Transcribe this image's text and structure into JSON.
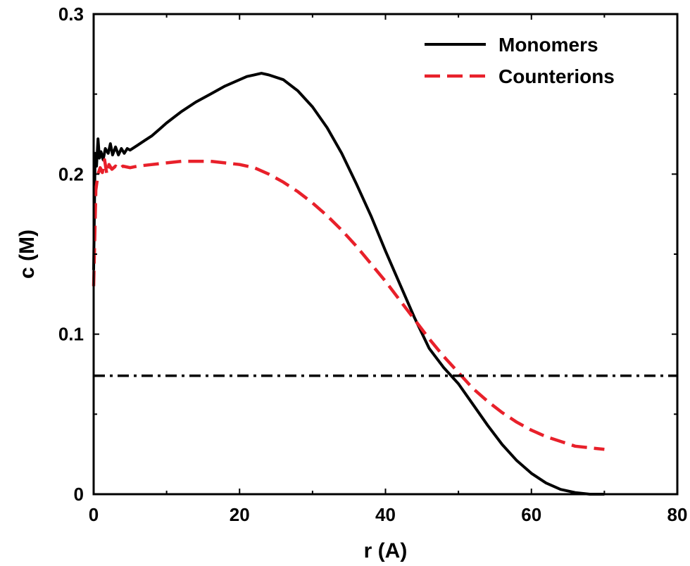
{
  "chart_data": {
    "type": "line",
    "title": "",
    "xlabel": "r (A)",
    "ylabel": "c (M)",
    "xlim": [
      0,
      80
    ],
    "ylim": [
      0,
      0.3
    ],
    "x_ticks": [
      "0",
      "20",
      "40",
      "60",
      "80"
    ],
    "y_ticks": [
      "0",
      "0.1",
      "0.2",
      "0.3"
    ],
    "grid": false,
    "legend_position": "top-right",
    "series": [
      {
        "name": "Monomers",
        "color": "#000000",
        "style": "solid",
        "x": [
          0,
          0.2,
          0.4,
          0.6,
          0.8,
          1,
          1.3,
          1.6,
          2,
          2.3,
          2.6,
          3,
          3.4,
          3.8,
          4.2,
          4.6,
          5,
          6,
          7,
          8,
          9,
          10,
          12,
          14,
          16,
          18,
          20,
          21,
          22,
          23,
          24,
          26,
          28,
          30,
          32,
          34,
          36,
          38,
          40,
          42,
          44,
          46,
          48,
          50,
          52,
          54,
          56,
          58,
          60,
          62,
          64,
          66,
          68,
          70
        ],
        "y": [
          0.14,
          0.213,
          0.205,
          0.222,
          0.21,
          0.214,
          0.209,
          0.216,
          0.213,
          0.219,
          0.212,
          0.217,
          0.212,
          0.216,
          0.213,
          0.216,
          0.215,
          0.218,
          0.221,
          0.224,
          0.228,
          0.232,
          0.239,
          0.245,
          0.25,
          0.255,
          0.259,
          0.261,
          0.262,
          0.263,
          0.262,
          0.259,
          0.252,
          0.242,
          0.229,
          0.213,
          0.194,
          0.174,
          0.152,
          0.131,
          0.11,
          0.091,
          0.079,
          0.069,
          0.056,
          0.043,
          0.031,
          0.021,
          0.013,
          0.007,
          0.003,
          0.001,
          0.0,
          0.0
        ]
      },
      {
        "name": "Counterions",
        "color": "#e8202a",
        "style": "dashed",
        "x": [
          0,
          0.3,
          0.6,
          0.9,
          1.2,
          1.5,
          1.8,
          2.1,
          2.5,
          3,
          3.5,
          4,
          5,
          6,
          8,
          10,
          12,
          14,
          16,
          18,
          20,
          22,
          24,
          26,
          28,
          30,
          32,
          34,
          36,
          38,
          40,
          42,
          44,
          46,
          48,
          50,
          52,
          54,
          56,
          58,
          60,
          62,
          64,
          66,
          68,
          70
        ],
        "y": [
          0.13,
          0.19,
          0.2,
          0.204,
          0.201,
          0.209,
          0.2,
          0.206,
          0.203,
          0.205,
          0.203,
          0.205,
          0.204,
          0.205,
          0.206,
          0.207,
          0.208,
          0.208,
          0.208,
          0.207,
          0.206,
          0.204,
          0.2,
          0.195,
          0.189,
          0.182,
          0.174,
          0.165,
          0.155,
          0.144,
          0.133,
          0.121,
          0.109,
          0.097,
          0.086,
          0.076,
          0.066,
          0.058,
          0.051,
          0.045,
          0.04,
          0.036,
          0.033,
          0.03,
          0.029,
          0.028
        ]
      },
      {
        "color": "#000000",
        "style": "dashdot",
        "x": [
          0,
          80
        ],
        "y": [
          0.074,
          0.074
        ]
      }
    ]
  }
}
